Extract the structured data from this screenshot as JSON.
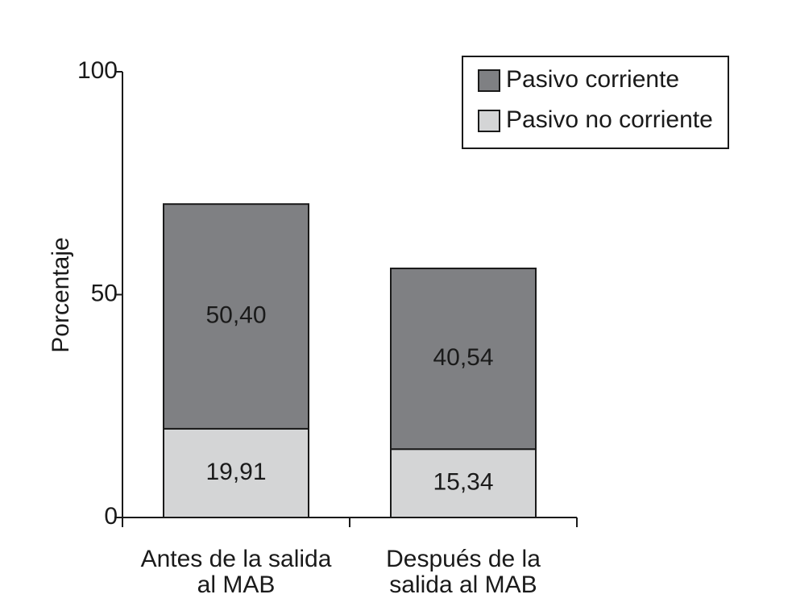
{
  "chart_data": {
    "type": "bar",
    "stacked": true,
    "categories": [
      [
        "Antes de la salida",
        "al MAB"
      ],
      [
        "Después de la",
        "salida al MAB"
      ]
    ],
    "series": [
      {
        "name": "Pasivo no corriente",
        "values": [
          19.91,
          15.34
        ],
        "labels": [
          "19,91",
          "15,34"
        ],
        "color": "#d4d5d6"
      },
      {
        "name": "Pasivo corriente",
        "values": [
          50.4,
          40.54
        ],
        "labels": [
          "50,40",
          "40,54"
        ],
        "color": "#7f8083"
      }
    ],
    "legend_order": [
      1,
      0
    ],
    "ylabel": "Porcentaje",
    "ylim": [
      0,
      100
    ],
    "yticks": [
      0,
      50,
      100
    ],
    "legend_position": "top-right",
    "grid": false
  }
}
